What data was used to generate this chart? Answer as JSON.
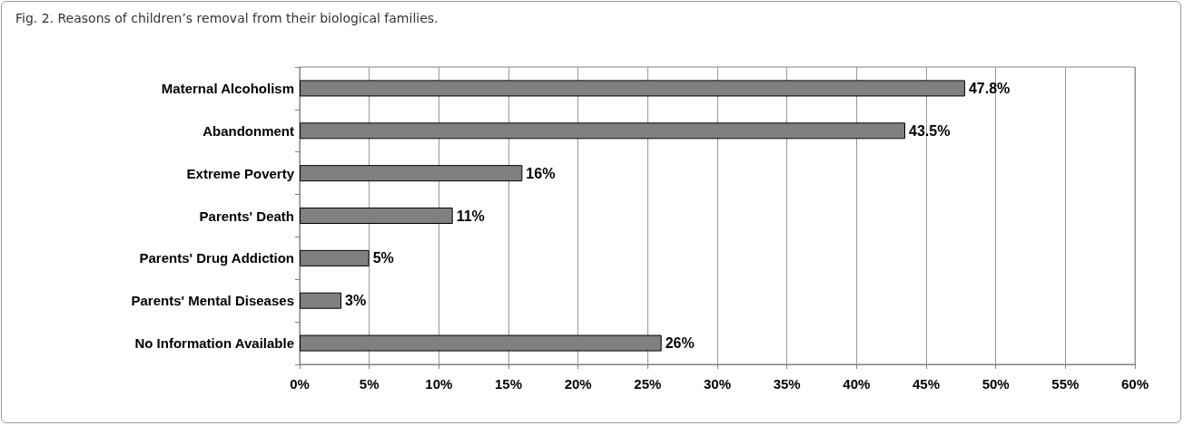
{
  "chart_data": {
    "type": "bar",
    "orientation": "horizontal",
    "title": "Fig. 2. Reasons of children’s removal from their biological families.",
    "categories": [
      "Maternal Alcoholism",
      "Abandonment",
      "Extreme Poverty",
      "Parents' Death",
      "Parents' Drug Addiction",
      "Parents' Mental Diseases",
      "No Information Available"
    ],
    "values": [
      47.8,
      43.5,
      16,
      11,
      5,
      3,
      26
    ],
    "value_labels": [
      "47.8%",
      "43.5%",
      "16%",
      "11%",
      "5%",
      "3%",
      "26%"
    ],
    "color": "#808080",
    "xlim": [
      0,
      60
    ],
    "xticks": [
      {
        "value": 0,
        "label": "0%"
      },
      {
        "value": 5,
        "label": "5%"
      },
      {
        "value": 10,
        "label": "10%"
      },
      {
        "value": 15,
        "label": "15%"
      },
      {
        "value": 20,
        "label": "20%"
      },
      {
        "value": 25,
        "label": "25%"
      },
      {
        "value": 30,
        "label": "30%"
      },
      {
        "value": 35,
        "label": "35%"
      },
      {
        "value": 40,
        "label": "40%"
      },
      {
        "value": 45,
        "label": "45%"
      },
      {
        "value": 50,
        "label": "50%"
      },
      {
        "value": 55,
        "label": "55%"
      },
      {
        "value": 60,
        "label": "60%"
      }
    ],
    "grid": "x"
  }
}
